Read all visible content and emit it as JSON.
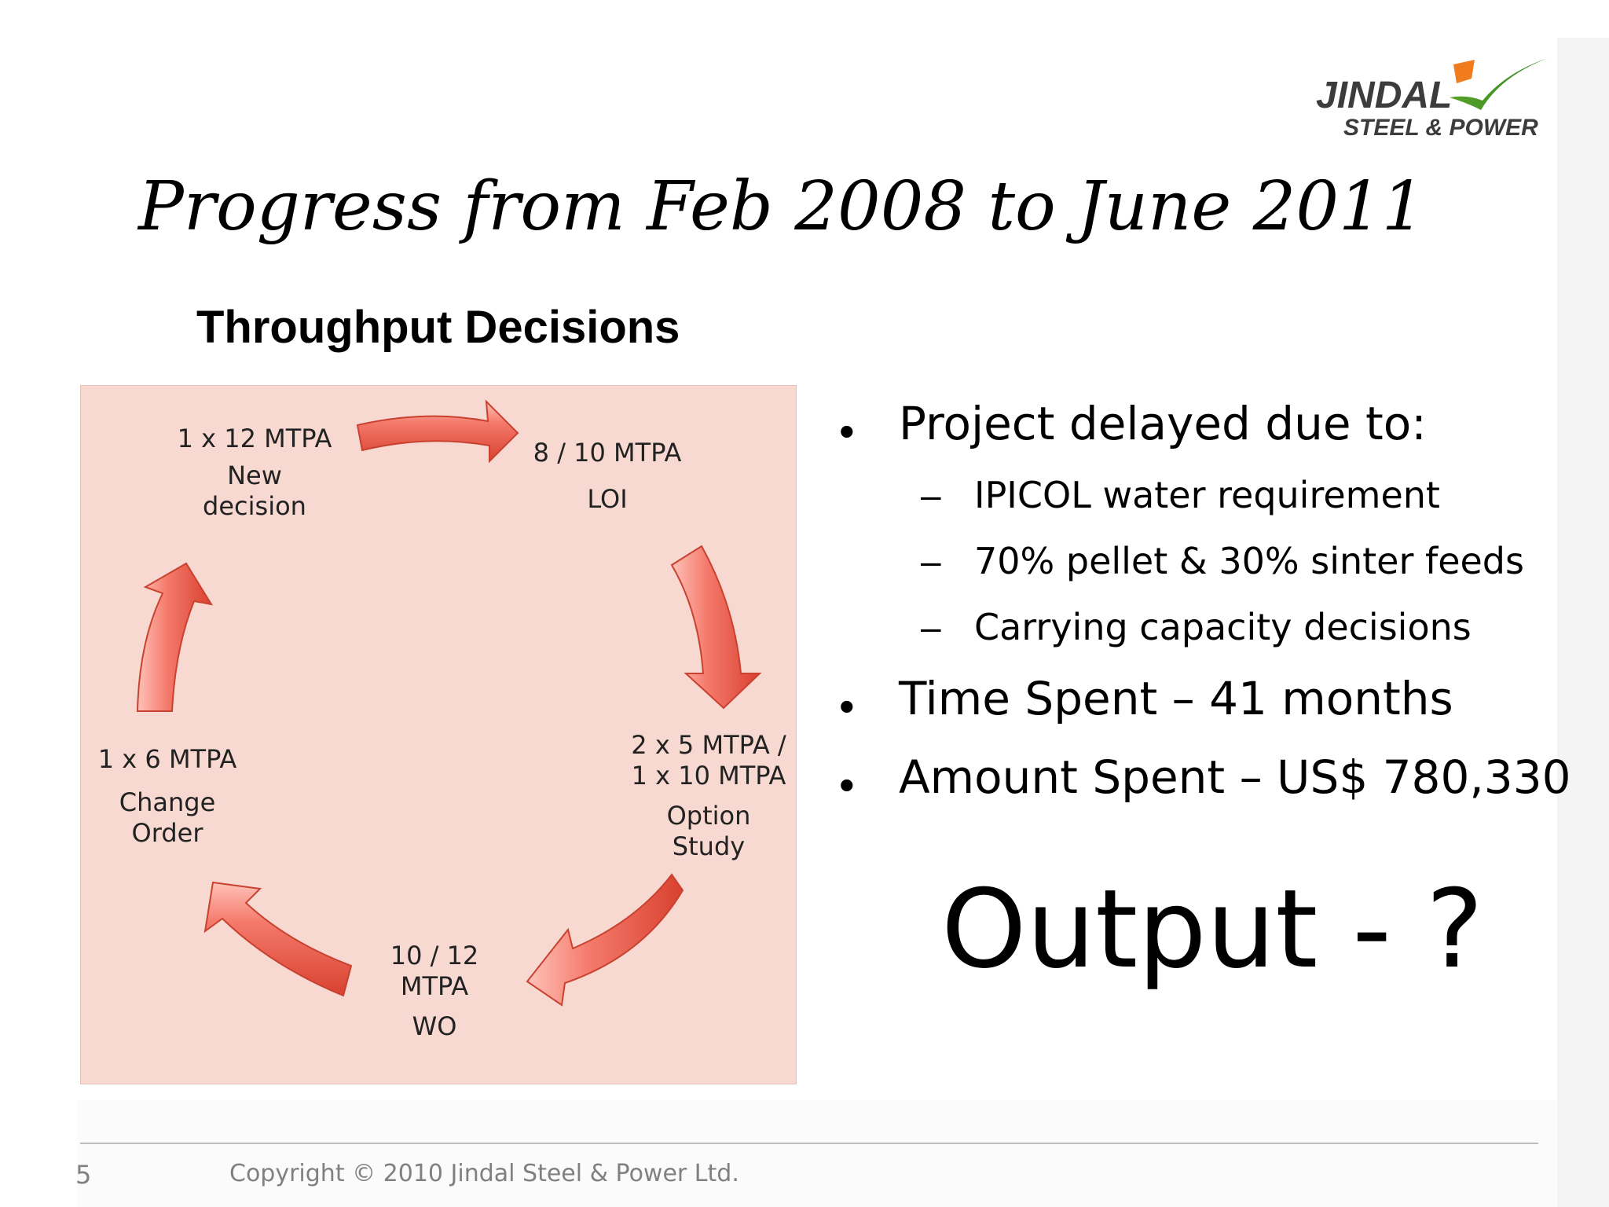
{
  "logo": {
    "word": "JINDAL",
    "sub": "STEEL & POWER"
  },
  "slide": {
    "title": "Progress from Feb 2008 to June 2011",
    "subtitle": "Throughput Decisions"
  },
  "diagram": {
    "nodes": [
      {
        "line1": "1 x 12 MTPA",
        "line2": "New",
        "line3": "decision"
      },
      {
        "line1": "8 / 10 MTPA",
        "line2": "LOI"
      },
      {
        "line1": "2 x 5 MTPA /",
        "line2": "1 x 10 MTPA",
        "line3": "Option",
        "line4": "Study"
      },
      {
        "line1": "10 / 12",
        "line2": "MTPA",
        "line3": "WO"
      },
      {
        "line1": "1 x 6 MTPA",
        "line2": "Change",
        "line3": "Order"
      }
    ],
    "arrow_color": "#e8574a"
  },
  "bullets": {
    "main1": "Project delayed due to:",
    "subs": [
      " IPICOL water requirement",
      "70% pellet & 30% sinter feeds",
      "Carrying capacity decisions"
    ],
    "main2": "Time Spent – 41 months",
    "main3": "Amount Spent – US$ 780,330",
    "bullet_glyph": "•",
    "dash_glyph": "–"
  },
  "output": "Output - ?",
  "footer": {
    "page_number": "5",
    "copyright": "Copyright © 2010 Jindal Steel & Power Ltd."
  }
}
